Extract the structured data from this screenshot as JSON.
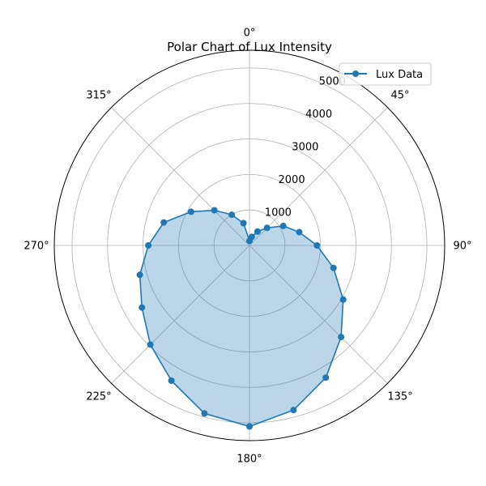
{
  "chart_data": {
    "type": "line",
    "projection": "polar",
    "title": "Polar Chart of Lux Intensity",
    "theta_zero": "top",
    "theta_direction": "clockwise",
    "theta_ticks": [
      "0°",
      "45°",
      "90°",
      "135°",
      "180°",
      "225°",
      "270°",
      "315°"
    ],
    "theta_tick_values": [
      0,
      45,
      90,
      135,
      180,
      225,
      270,
      315
    ],
    "r_ticks": [
      "1000",
      "2000",
      "3000",
      "4000",
      "5000"
    ],
    "r_tick_values": [
      1000,
      2000,
      3000,
      4000,
      5000
    ],
    "rlim": [
      0,
      5500
    ],
    "grid": true,
    "legend_position": "top-right",
    "filled": true,
    "series": [
      {
        "name": "Lux Data",
        "color": "#1f77b4",
        "fill_color": "#1f77b4",
        "x": [
          0,
          15,
          30,
          45,
          60,
          75,
          90,
          105,
          120,
          135,
          150,
          165,
          180,
          195,
          210,
          225,
          240,
          255,
          270,
          285,
          300,
          315,
          330,
          345
        ],
        "values": [
          130,
          250,
          450,
          700,
          1100,
          1450,
          1900,
          2450,
          3050,
          3650,
          4300,
          4800,
          5100,
          4900,
          4400,
          3950,
          3500,
          3200,
          2850,
          2500,
          1900,
          1400,
          1000,
          650
        ]
      }
    ]
  }
}
